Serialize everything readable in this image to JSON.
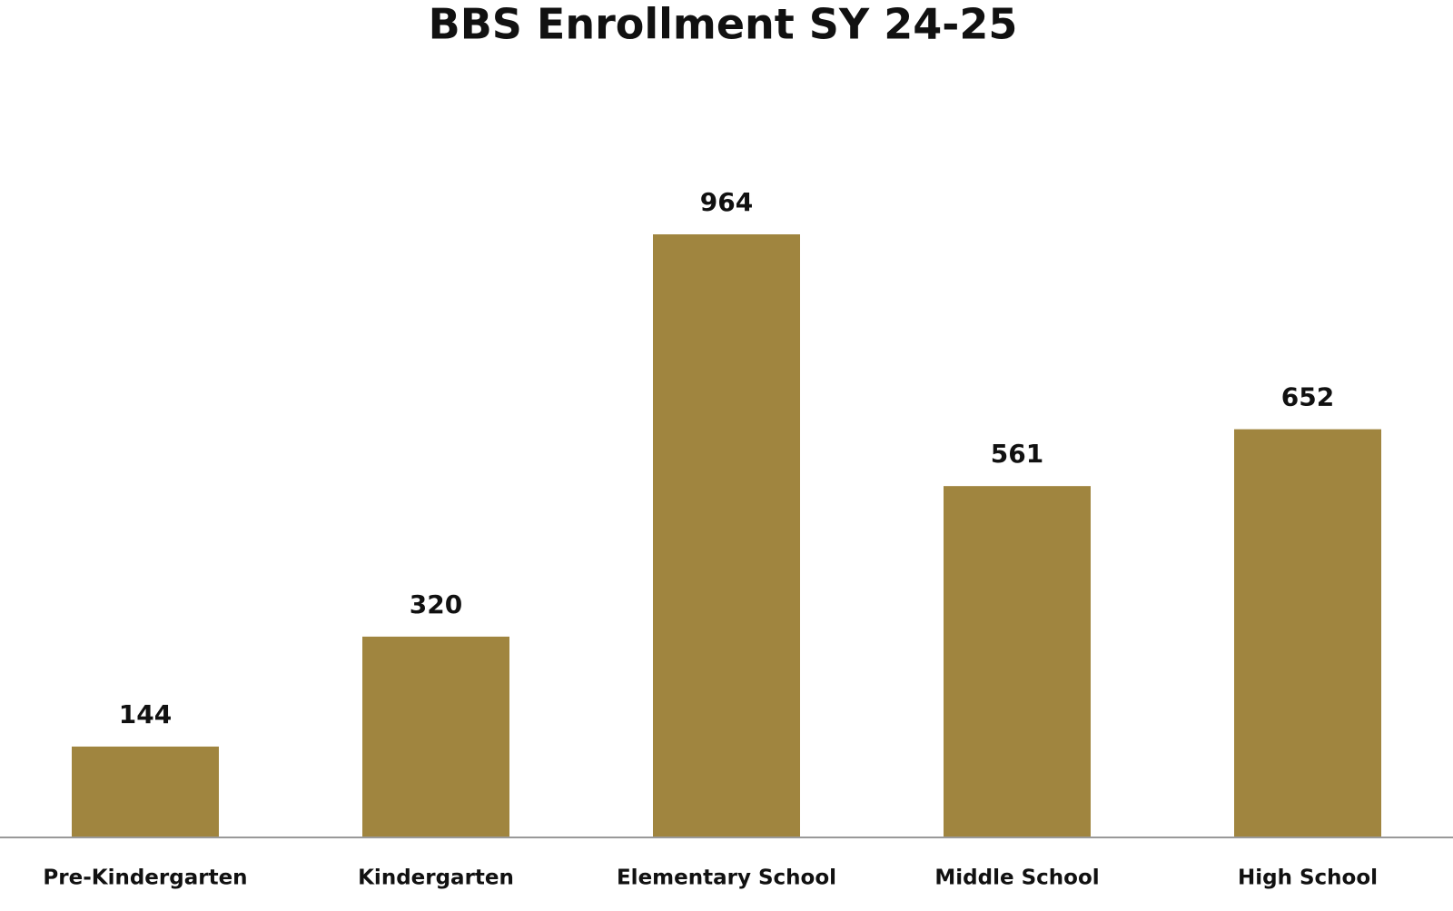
{
  "chart_data": {
    "type": "bar",
    "title": "BBS Enrollment SY 24-25",
    "categories": [
      "Pre-Kindergarten",
      "Kindergarten",
      "Elementary School",
      "Middle School",
      "High School"
    ],
    "values": [
      144,
      320,
      964,
      561,
      652
    ],
    "color": "#a0853f"
  }
}
